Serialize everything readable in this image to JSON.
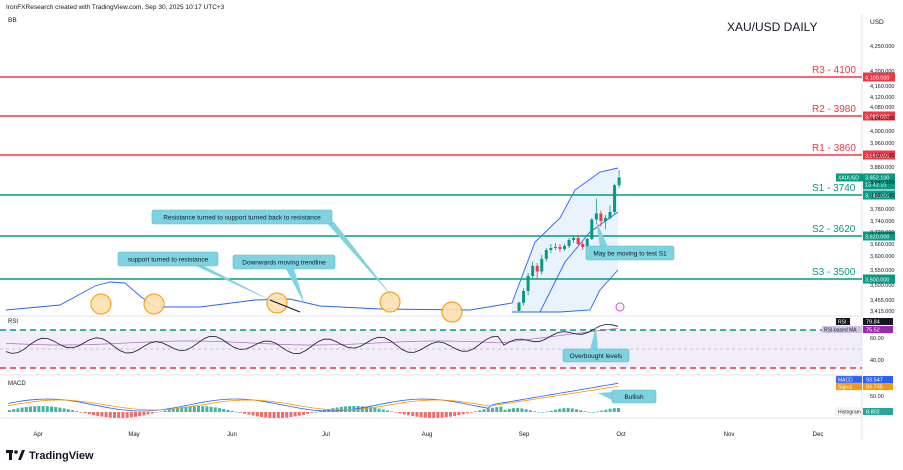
{
  "header": {
    "credit": "IronFXResearch created with TradingView.com, Sep 30, 2025 10:17 UTC+3",
    "indicator": "BB",
    "currency": "USD",
    "title": "XAU/USD DAILY"
  },
  "footer": {
    "logo_text": "TradingView"
  },
  "colors": {
    "resistance": "#f23645",
    "support": "#089981",
    "up_candle": "#089981",
    "down_candle": "#f23645",
    "bollinger": "#2962ff",
    "bollinger_fill": "#e3f0fb",
    "rsi": "#131722",
    "rsi_ma": "#9c27b0",
    "rsi_band": "#ede7f6",
    "macd": "#2962ff",
    "signal": "#ff9800",
    "callout": "#7fd3e0",
    "highlight": "#ff9800"
  },
  "chart_data": [
    {
      "type": "candlestick",
      "title": "XAU/USD DAILY",
      "symbol": "XAUUSD",
      "x_labels": [
        "Apr",
        "May",
        "Jun",
        "Jul",
        "Aug",
        "Sep",
        "Oct",
        "Nov",
        "Dec"
      ],
      "y_ticks": [
        4250,
        4200,
        4160,
        4120,
        4080,
        4040,
        4000,
        3960,
        3920,
        3880,
        3840,
        3800,
        3780,
        3740,
        3720,
        3660,
        3600,
        3550,
        3500,
        3455,
        3415
      ],
      "y_tick_labels": [
        "4,250.000",
        "4,200.000",
        "4,160.000",
        "4,120.000",
        "4,080.000",
        "4,040.000",
        "4,000.000",
        "3,960.000",
        "3,920.000",
        "3,880.000",
        "3,840.000",
        "3,800.000",
        "3,780.000",
        "3,740.000",
        "3,720.000",
        "3,660.000",
        "3,600.000",
        "3,550.000",
        "3,500.000",
        "3,455.000",
        "3,415.000"
      ],
      "levels": [
        {
          "name": "R3 - 4100",
          "value": 4100,
          "price_label": "4,100.000",
          "kind": "resistance"
        },
        {
          "name": "R2 - 3980",
          "value": 3980,
          "price_label": "3,980.000",
          "kind": "resistance"
        },
        {
          "name": "R1 - 3860",
          "value": 3860,
          "price_label": "3,860.000",
          "kind": "resistance"
        },
        {
          "name": "S1 - 3740",
          "value": 3740,
          "price_label": "3,740.000",
          "kind": "support"
        },
        {
          "name": "S2 - 3620",
          "value": 3620,
          "price_label": "3,620.000",
          "kind": "support"
        },
        {
          "name": "S3 - 3500",
          "value": 3500,
          "price_label": "3,500.000",
          "kind": "support"
        }
      ],
      "last_price": {
        "symbol": "XAUUSD",
        "value": 3852.1,
        "label": "3,852.100",
        "countdown": "13:42:10"
      },
      "candles": [
        {
          "date": "Aug 29",
          "open": 3415,
          "high": 3450,
          "low": 3405,
          "close": 3445
        },
        {
          "date": "Sep 1",
          "open": 3445,
          "high": 3490,
          "low": 3435,
          "close": 3482
        },
        {
          "date": "Sep 2",
          "open": 3482,
          "high": 3540,
          "low": 3470,
          "close": 3530
        },
        {
          "date": "Sep 3",
          "open": 3530,
          "high": 3580,
          "low": 3520,
          "close": 3565
        },
        {
          "date": "Sep 4",
          "open": 3565,
          "high": 3575,
          "low": 3520,
          "close": 3545
        },
        {
          "date": "Sep 5",
          "open": 3545,
          "high": 3605,
          "low": 3535,
          "close": 3590
        },
        {
          "date": "Sep 8",
          "open": 3590,
          "high": 3640,
          "low": 3580,
          "close": 3630
        },
        {
          "date": "Sep 9",
          "open": 3630,
          "high": 3660,
          "low": 3615,
          "close": 3640
        },
        {
          "date": "Sep 10",
          "open": 3640,
          "high": 3665,
          "low": 3630,
          "close": 3645
        },
        {
          "date": "Sep 11",
          "open": 3645,
          "high": 3660,
          "low": 3620,
          "close": 3635
        },
        {
          "date": "Sep 12",
          "open": 3635,
          "high": 3660,
          "low": 3625,
          "close": 3650
        },
        {
          "date": "Sep 15",
          "open": 3650,
          "high": 3690,
          "low": 3640,
          "close": 3680
        },
        {
          "date": "Sep 16",
          "open": 3680,
          "high": 3700,
          "low": 3665,
          "close": 3690
        },
        {
          "date": "Sep 17",
          "open": 3690,
          "high": 3705,
          "low": 3655,
          "close": 3660
        },
        {
          "date": "Sep 18",
          "open": 3660,
          "high": 3670,
          "low": 3630,
          "close": 3645
        },
        {
          "date": "Sep 19",
          "open": 3645,
          "high": 3690,
          "low": 3640,
          "close": 3685
        },
        {
          "date": "Sep 22",
          "open": 3685,
          "high": 3750,
          "low": 3680,
          "close": 3745
        },
        {
          "date": "Sep 23",
          "open": 3745,
          "high": 3795,
          "low": 3735,
          "close": 3765
        },
        {
          "date": "Sep 24",
          "open": 3765,
          "high": 3775,
          "low": 3730,
          "close": 3740
        },
        {
          "date": "Sep 25",
          "open": 3740,
          "high": 3760,
          "low": 3725,
          "close": 3750
        },
        {
          "date": "Sep 26",
          "open": 3750,
          "high": 3785,
          "low": 3745,
          "close": 3770
        },
        {
          "date": "Sep 29",
          "open": 3770,
          "high": 3835,
          "low": 3765,
          "close": 3830
        },
        {
          "date": "Sep 30",
          "open": 3830,
          "high": 3872,
          "low": 3820,
          "close": 3852.1
        }
      ],
      "annotations": [
        {
          "text": "Resistance turned to support turned back to resistance"
        },
        {
          "text": "support turned to resistance"
        },
        {
          "text": "Downwards moving trendline"
        },
        {
          "text": "May be moving to test S1"
        }
      ]
    },
    {
      "type": "line",
      "title": "RSI",
      "series": [
        {
          "name": "RSI",
          "last": 79.84,
          "label": "79.84"
        },
        {
          "name": "RSI-based MA",
          "last": 75.52,
          "label": "75.52"
        }
      ],
      "y_ticks": [
        60,
        40
      ],
      "y_tick_labels": [
        "60.00",
        "40.00"
      ],
      "levels": [
        70,
        30
      ],
      "annotation": "Overbought levels"
    },
    {
      "type": "line",
      "title": "MACD",
      "series": [
        {
          "name": "MACD",
          "last": 93.547,
          "label": "93.547"
        },
        {
          "name": "Signal",
          "last": 84.745,
          "label": "84.745"
        },
        {
          "name": "Histogram",
          "last": 8.802,
          "label": "8.802"
        }
      ],
      "y_ticks": [
        50
      ],
      "y_tick_labels": [
        "50.00"
      ],
      "annotation": "Bullish"
    }
  ]
}
